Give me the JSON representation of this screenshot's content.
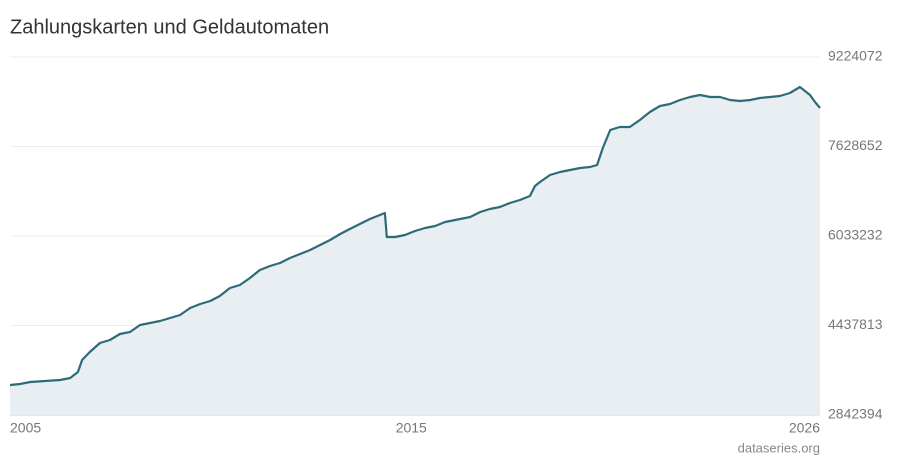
{
  "chart_data": {
    "type": "area",
    "title": "Zahlungskarten und Geldautomaten",
    "source": "dataseries.org",
    "color": "#2e6b78",
    "fill": "#e8eef1",
    "xlim": [
      2005,
      2026
    ],
    "xticks": [
      2005,
      2015,
      2026
    ],
    "ylim": [
      2842394,
      9224072
    ],
    "yticks": [
      2842394,
      4437813,
      6033232,
      7628652,
      9224072
    ],
    "grid": true,
    "x": [
      2005.0,
      2005.26,
      2005.52,
      2005.91,
      2006.3,
      2006.56,
      2006.76,
      2006.87,
      2007.07,
      2007.33,
      2007.59,
      2007.85,
      2008.11,
      2008.37,
      2008.63,
      2008.89,
      2009.15,
      2009.41,
      2009.67,
      2009.93,
      2010.19,
      2010.44,
      2010.7,
      2010.96,
      2011.22,
      2011.48,
      2011.74,
      2012.0,
      2012.26,
      2012.52,
      2012.78,
      2013.04,
      2013.3,
      2013.56,
      2013.81,
      2014.07,
      2014.33,
      2014.59,
      2014.72,
      2014.77,
      2014.98,
      2015.24,
      2015.5,
      2015.76,
      2016.02,
      2016.28,
      2016.54,
      2016.93,
      2017.19,
      2017.44,
      2017.7,
      2017.96,
      2018.22,
      2018.48,
      2018.61,
      2018.74,
      2019.0,
      2019.26,
      2019.52,
      2019.78,
      2020.04,
      2020.22,
      2020.37,
      2020.56,
      2020.81,
      2021.07,
      2021.33,
      2021.59,
      2021.85,
      2022.11,
      2022.37,
      2022.63,
      2022.89,
      2023.15,
      2023.41,
      2023.67,
      2023.93,
      2024.19,
      2024.44,
      2024.7,
      2024.96,
      2025.22,
      2025.48,
      2025.74,
      2025.87,
      2026.0
    ],
    "values": [
      3377000,
      3395000,
      3431000,
      3448000,
      3466000,
      3502000,
      3609000,
      3823000,
      3965000,
      4126000,
      4179000,
      4286000,
      4322000,
      4447000,
      4482000,
      4518000,
      4572000,
      4625000,
      4750000,
      4821000,
      4875000,
      4964000,
      5106000,
      5160000,
      5285000,
      5427000,
      5499000,
      5552000,
      5641000,
      5712000,
      5784000,
      5873000,
      5962000,
      6069000,
      6158000,
      6247000,
      6336000,
      6408000,
      6443000,
      6015000,
      6015000,
      6051000,
      6122000,
      6176000,
      6211000,
      6283000,
      6318000,
      6372000,
      6461000,
      6515000,
      6550000,
      6622000,
      6675000,
      6746000,
      6925000,
      6996000,
      7121000,
      7174000,
      7210000,
      7245000,
      7263000,
      7299000,
      7602000,
      7923000,
      7976000,
      7976000,
      8101000,
      8243000,
      8351000,
      8386000,
      8458000,
      8511000,
      8547000,
      8511000,
      8511000,
      8458000,
      8440000,
      8458000,
      8493000,
      8511000,
      8529000,
      8582000,
      8689000,
      8547000,
      8422000,
      8315000
    ]
  }
}
